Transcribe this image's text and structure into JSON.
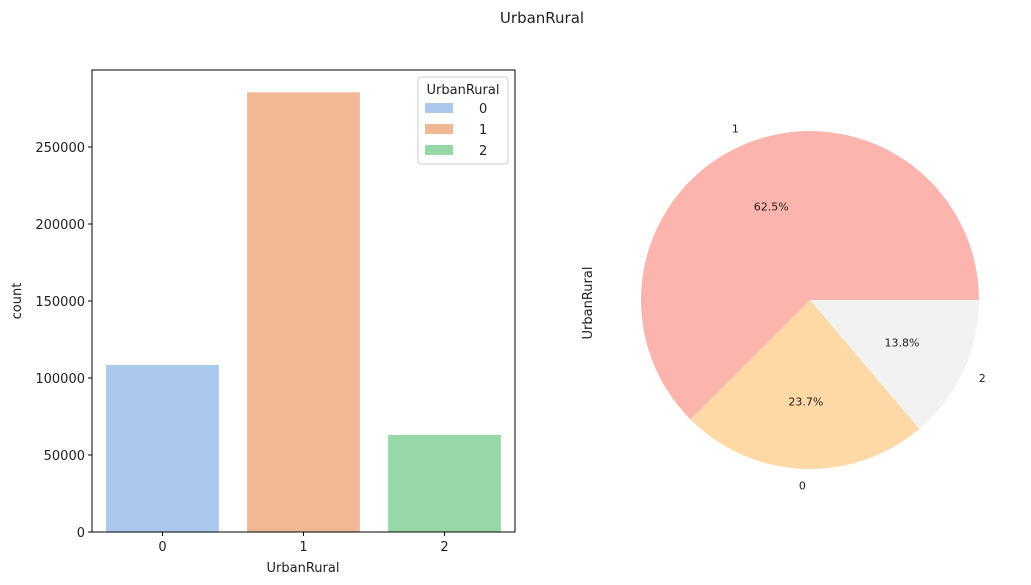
{
  "figure": {
    "suptitle": "UrbanRural"
  },
  "chart_data": [
    {
      "type": "bar",
      "title": "",
      "xlabel": "UrbanRural",
      "ylabel": "count",
      "categories": [
        "0",
        "1",
        "2"
      ],
      "values": [
        108500,
        285500,
        63000
      ],
      "colors": [
        "#abc9ec",
        "#f0b894",
        "#98d8a8"
      ],
      "ylim": [
        0,
        300000
      ],
      "yticks": [
        0,
        50000,
        100000,
        150000,
        200000,
        250000
      ],
      "ytick_labels": [
        "0",
        "50000",
        "100000",
        "150000",
        "200000",
        "250000"
      ],
      "grid": false,
      "legend": {
        "title": "UrbanRural",
        "placement": "upper-right",
        "entries": [
          "0",
          "1",
          "2"
        ]
      }
    },
    {
      "type": "pie",
      "title": "",
      "ylabel": "UrbanRural",
      "labels": [
        "1",
        "0",
        "2"
      ],
      "values": [
        62.5,
        23.7,
        13.8
      ],
      "pct_labels": [
        "62.5%",
        "23.7%",
        "13.8%"
      ],
      "colors": [
        "#fbb4ae",
        "#fed9a6",
        "#f2f2f2"
      ]
    }
  ]
}
